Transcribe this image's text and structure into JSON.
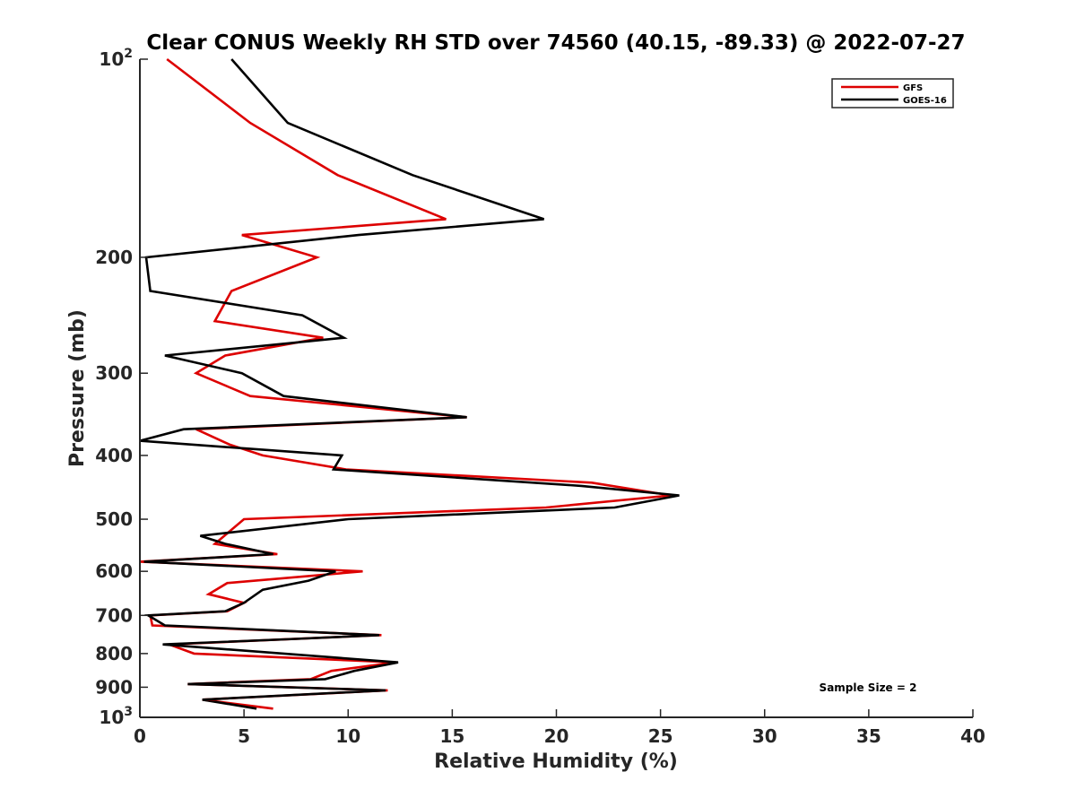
{
  "chart_data": {
    "type": "line",
    "title": "Clear CONUS Weekly RH STD over 74560 (40.15, -89.33) @ 2022-07-27",
    "xlabel": "Relative Humidity (%)",
    "ylabel": "Pressure (mb)",
    "xlim": [
      0,
      40
    ],
    "ylim": [
      100,
      1000
    ],
    "y_scale": "log",
    "y_reversed": true,
    "grid": false,
    "legend_position": "top-right",
    "x_ticks": [
      0,
      5,
      10,
      15,
      20,
      25,
      30,
      35,
      40
    ],
    "y_ticks": [
      {
        "value": 100,
        "base": "10",
        "exp": "2"
      },
      {
        "value": 200,
        "label": "200"
      },
      {
        "value": 300,
        "label": "300"
      },
      {
        "value": 400,
        "label": "400"
      },
      {
        "value": 500,
        "label": "500"
      },
      {
        "value": 600,
        "label": "600"
      },
      {
        "value": 700,
        "label": "700"
      },
      {
        "value": 800,
        "label": "800"
      },
      {
        "value": 900,
        "label": "900"
      },
      {
        "value": 1000,
        "base": "10",
        "exp": "3"
      }
    ],
    "series": [
      {
        "name": "GFS",
        "color": "#dd0000",
        "points": [
          [
            1.3,
            100
          ],
          [
            5.3,
            125
          ],
          [
            9.5,
            150
          ],
          [
            14.7,
            175
          ],
          [
            4.9,
            185
          ],
          [
            8.5,
            200
          ],
          [
            4.4,
            225
          ],
          [
            3.6,
            250
          ],
          [
            8.8,
            265
          ],
          [
            4.1,
            282
          ],
          [
            2.7,
            300
          ],
          [
            5.3,
            325
          ],
          [
            15.7,
            350
          ],
          [
            2.7,
            365
          ],
          [
            4.3,
            385
          ],
          [
            5.9,
            400
          ],
          [
            9.9,
            420
          ],
          [
            21.7,
            440
          ],
          [
            25.5,
            460
          ],
          [
            19.5,
            480
          ],
          [
            5.0,
            500
          ],
          [
            3.9,
            535
          ],
          [
            3.6,
            545
          ],
          [
            6.6,
            565
          ],
          [
            0.0,
            580
          ],
          [
            10.7,
            600
          ],
          [
            4.2,
            625
          ],
          [
            3.3,
            650
          ],
          [
            5.0,
            670
          ],
          [
            4.2,
            690
          ],
          [
            0.5,
            700
          ],
          [
            0.6,
            725
          ],
          [
            11.6,
            750
          ],
          [
            1.4,
            775
          ],
          [
            2.6,
            800
          ],
          [
            12.3,
            825
          ],
          [
            9.2,
            850
          ],
          [
            8.2,
            875
          ],
          [
            2.3,
            890
          ],
          [
            11.9,
            910
          ],
          [
            3.0,
            940
          ],
          [
            6.4,
            970
          ]
        ]
      },
      {
        "name": "GOES-16",
        "color": "#000000",
        "points": [
          [
            4.4,
            100
          ],
          [
            7.1,
            125
          ],
          [
            13.1,
            150
          ],
          [
            19.4,
            175
          ],
          [
            10.5,
            185
          ],
          [
            0.3,
            200
          ],
          [
            0.5,
            225
          ],
          [
            7.8,
            245
          ],
          [
            9.8,
            265
          ],
          [
            1.2,
            282
          ],
          [
            4.9,
            300
          ],
          [
            6.9,
            325
          ],
          [
            15.7,
            350
          ],
          [
            2.1,
            365
          ],
          [
            0.0,
            380
          ],
          [
            9.7,
            400
          ],
          [
            9.3,
            420
          ],
          [
            21.2,
            445
          ],
          [
            25.9,
            460
          ],
          [
            22.8,
            480
          ],
          [
            10.0,
            500
          ],
          [
            2.9,
            530
          ],
          [
            4.1,
            545
          ],
          [
            6.4,
            565
          ],
          [
            0.2,
            580
          ],
          [
            9.4,
            600
          ],
          [
            8.1,
            620
          ],
          [
            5.9,
            640
          ],
          [
            5.0,
            670
          ],
          [
            4.1,
            690
          ],
          [
            0.4,
            700
          ],
          [
            1.2,
            725
          ],
          [
            11.5,
            750
          ],
          [
            7.5,
            760
          ],
          [
            1.1,
            775
          ],
          [
            12.4,
            825
          ],
          [
            10.3,
            850
          ],
          [
            8.9,
            875
          ],
          [
            2.3,
            890
          ],
          [
            11.8,
            910
          ],
          [
            3.0,
            940
          ],
          [
            5.6,
            970
          ]
        ]
      }
    ],
    "legend": [
      {
        "label": "GFS",
        "color": "#dd0000"
      },
      {
        "label": "GOES-16",
        "color": "#000000"
      }
    ],
    "annotations": {
      "sample_size": "Sample Size = 2"
    }
  }
}
